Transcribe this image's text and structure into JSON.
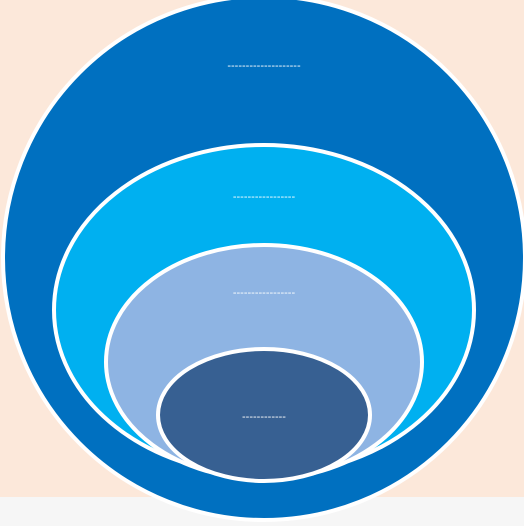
{
  "diagram": {
    "title": "",
    "levels": [
      {
        "label": "--------------------",
        "fill": "#0070c0",
        "stroke": "#ffffff"
      },
      {
        "label": "-----------------",
        "fill": "#00b0f0",
        "stroke": "#ffffff"
      },
      {
        "label": "-----------------",
        "fill": "#8eb4e3",
        "stroke": "#ffffff"
      },
      {
        "label": "------------",
        "fill": "#376092",
        "stroke": "#ffffff"
      }
    ],
    "colors": {
      "background": "#fce8da",
      "bottom_strip": "#f6f6f6",
      "label_text": "#ffffff"
    }
  }
}
